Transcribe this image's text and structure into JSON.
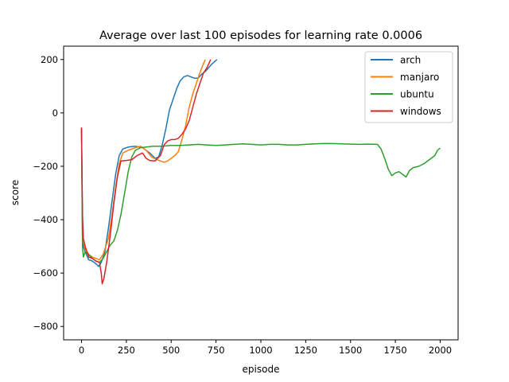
{
  "chart_data": {
    "type": "line",
    "title": "Average over last 100 episodes for learning rate 0.0006",
    "xlabel": "episode",
    "ylabel": "score",
    "xlim": [
      -100,
      2100
    ],
    "ylim": [
      -850,
      250
    ],
    "xticks": [
      0,
      250,
      500,
      750,
      1000,
      1250,
      1500,
      1750,
      2000
    ],
    "yticks": [
      200,
      0,
      -200,
      -400,
      -600,
      -800
    ],
    "xtick_labels": [
      "0",
      "250",
      "500",
      "750",
      "1000",
      "1250",
      "1500",
      "1750",
      "2000"
    ],
    "ytick_labels": [
      "200",
      "0",
      "−200",
      "−400",
      "−600",
      "−800"
    ],
    "grid": false,
    "legend_position": "top-right",
    "series": [
      {
        "name": "arch",
        "color": "#1f77b4",
        "points": [
          [
            0,
            -60
          ],
          [
            5,
            -420
          ],
          [
            10,
            -500
          ],
          [
            20,
            -520
          ],
          [
            40,
            -550
          ],
          [
            60,
            -555
          ],
          [
            80,
            -565
          ],
          [
            95,
            -575
          ],
          [
            110,
            -560
          ],
          [
            130,
            -520
          ],
          [
            150,
            -430
          ],
          [
            170,
            -330
          ],
          [
            190,
            -230
          ],
          [
            210,
            -160
          ],
          [
            230,
            -135
          ],
          [
            260,
            -128
          ],
          [
            300,
            -125
          ],
          [
            340,
            -130
          ],
          [
            380,
            -150
          ],
          [
            410,
            -170
          ],
          [
            430,
            -165
          ],
          [
            450,
            -120
          ],
          [
            470,
            -60
          ],
          [
            490,
            10
          ],
          [
            510,
            50
          ],
          [
            530,
            90
          ],
          [
            550,
            120
          ],
          [
            570,
            135
          ],
          [
            590,
            140
          ],
          [
            610,
            135
          ],
          [
            630,
            130
          ],
          [
            650,
            130
          ],
          [
            670,
            145
          ],
          [
            690,
            155
          ],
          [
            710,
            170
          ],
          [
            730,
            185
          ],
          [
            755,
            200
          ]
        ]
      },
      {
        "name": "manjaro",
        "color": "#ff7f0e",
        "points": [
          [
            0,
            -55
          ],
          [
            5,
            -440
          ],
          [
            10,
            -480
          ],
          [
            20,
            -510
          ],
          [
            40,
            -530
          ],
          [
            60,
            -540
          ],
          [
            80,
            -545
          ],
          [
            100,
            -550
          ],
          [
            120,
            -530
          ],
          [
            150,
            -470
          ],
          [
            170,
            -380
          ],
          [
            190,
            -280
          ],
          [
            210,
            -190
          ],
          [
            230,
            -150
          ],
          [
            260,
            -140
          ],
          [
            300,
            -130
          ],
          [
            330,
            -125
          ],
          [
            360,
            -140
          ],
          [
            390,
            -165
          ],
          [
            420,
            -175
          ],
          [
            440,
            -180
          ],
          [
            460,
            -185
          ],
          [
            480,
            -180
          ],
          [
            500,
            -170
          ],
          [
            520,
            -160
          ],
          [
            540,
            -145
          ],
          [
            560,
            -100
          ],
          [
            580,
            -50
          ],
          [
            600,
            20
          ],
          [
            620,
            70
          ],
          [
            640,
            110
          ],
          [
            660,
            150
          ],
          [
            680,
            185
          ],
          [
            690,
            200
          ]
        ]
      },
      {
        "name": "ubuntu",
        "color": "#2ca02c",
        "points": [
          [
            0,
            -60
          ],
          [
            5,
            -500
          ],
          [
            10,
            -540
          ],
          [
            20,
            -520
          ],
          [
            40,
            -530
          ],
          [
            60,
            -545
          ],
          [
            80,
            -555
          ],
          [
            100,
            -560
          ],
          [
            120,
            -545
          ],
          [
            140,
            -520
          ],
          [
            160,
            -495
          ],
          [
            180,
            -480
          ],
          [
            200,
            -440
          ],
          [
            220,
            -380
          ],
          [
            240,
            -300
          ],
          [
            260,
            -220
          ],
          [
            280,
            -165
          ],
          [
            300,
            -140
          ],
          [
            330,
            -130
          ],
          [
            360,
            -128
          ],
          [
            400,
            -125
          ],
          [
            450,
            -125
          ],
          [
            500,
            -122
          ],
          [
            550,
            -122
          ],
          [
            600,
            -120
          ],
          [
            650,
            -118
          ],
          [
            700,
            -120
          ],
          [
            750,
            -122
          ],
          [
            800,
            -120
          ],
          [
            850,
            -118
          ],
          [
            900,
            -116
          ],
          [
            950,
            -118
          ],
          [
            1000,
            -120
          ],
          [
            1050,
            -118
          ],
          [
            1100,
            -118
          ],
          [
            1150,
            -120
          ],
          [
            1200,
            -120
          ],
          [
            1250,
            -118
          ],
          [
            1300,
            -116
          ],
          [
            1350,
            -115
          ],
          [
            1400,
            -115
          ],
          [
            1450,
            -116
          ],
          [
            1500,
            -117
          ],
          [
            1550,
            -118
          ],
          [
            1600,
            -117
          ],
          [
            1650,
            -118
          ],
          [
            1670,
            -135
          ],
          [
            1690,
            -170
          ],
          [
            1710,
            -210
          ],
          [
            1730,
            -235
          ],
          [
            1750,
            -225
          ],
          [
            1770,
            -220
          ],
          [
            1790,
            -230
          ],
          [
            1810,
            -240
          ],
          [
            1830,
            -215
          ],
          [
            1850,
            -205
          ],
          [
            1880,
            -200
          ],
          [
            1910,
            -190
          ],
          [
            1940,
            -175
          ],
          [
            1970,
            -160
          ],
          [
            1985,
            -140
          ],
          [
            2000,
            -132
          ]
        ]
      },
      {
        "name": "windows",
        "color": "#d62728",
        "points": [
          [
            0,
            -55
          ],
          [
            5,
            -380
          ],
          [
            10,
            -470
          ],
          [
            20,
            -500
          ],
          [
            40,
            -540
          ],
          [
            60,
            -545
          ],
          [
            80,
            -555
          ],
          [
            100,
            -560
          ],
          [
            110,
            -600
          ],
          [
            115,
            -640
          ],
          [
            125,
            -620
          ],
          [
            140,
            -560
          ],
          [
            160,
            -460
          ],
          [
            180,
            -340
          ],
          [
            200,
            -240
          ],
          [
            220,
            -180
          ],
          [
            250,
            -178
          ],
          [
            280,
            -175
          ],
          [
            310,
            -160
          ],
          [
            340,
            -150
          ],
          [
            360,
            -170
          ],
          [
            380,
            -178
          ],
          [
            410,
            -180
          ],
          [
            440,
            -160
          ],
          [
            460,
            -120
          ],
          [
            480,
            -105
          ],
          [
            500,
            -100
          ],
          [
            520,
            -100
          ],
          [
            540,
            -95
          ],
          [
            560,
            -80
          ],
          [
            580,
            -60
          ],
          [
            600,
            -30
          ],
          [
            620,
            20
          ],
          [
            640,
            70
          ],
          [
            660,
            110
          ],
          [
            680,
            150
          ],
          [
            700,
            170
          ],
          [
            720,
            200
          ]
        ]
      }
    ]
  }
}
